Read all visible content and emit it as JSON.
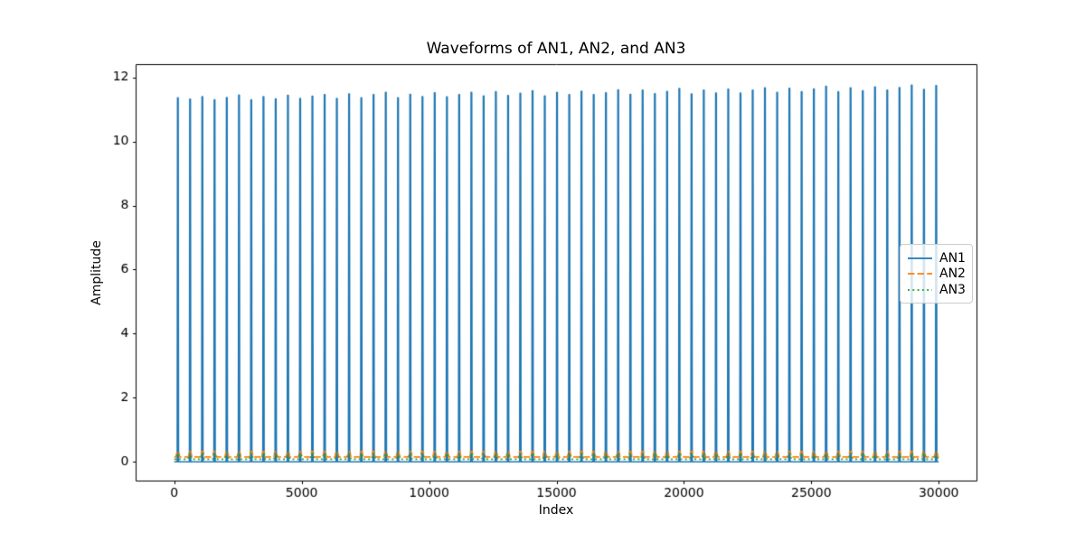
{
  "chart_data": {
    "type": "line",
    "title": "Waveforms of AN1, AN2, and AN3",
    "xlabel": "Index",
    "ylabel": "Amplitude",
    "xlim": [
      -1500,
      31500
    ],
    "ylim": [
      -0.6,
      12.4
    ],
    "xticks": [
      0,
      5000,
      10000,
      15000,
      20000,
      25000,
      30000
    ],
    "yticks": [
      0,
      2,
      4,
      6,
      8,
      10,
      12
    ],
    "grid": false,
    "legend_position": "center right",
    "series": [
      {
        "name": "AN1",
        "color": "#1f77b4",
        "style": "solid",
        "description": "periodic narrow tall pulses rising from a baseline of 0 to about 11.3-11.8, period about 480 samples, heights drifting slightly upward left to right",
        "baseline": 0,
        "spike_half_width": 25,
        "spike_positions": [
          140,
          620,
          1100,
          1580,
          2060,
          2540,
          3020,
          3500,
          3980,
          4460,
          4940,
          5420,
          5900,
          6380,
          6860,
          7340,
          7820,
          8300,
          8780,
          9260,
          9740,
          10220,
          10700,
          11180,
          11660,
          12140,
          12620,
          13100,
          13580,
          14060,
          14540,
          15020,
          15500,
          15980,
          16460,
          16940,
          17420,
          17900,
          18380,
          18860,
          19340,
          19820,
          20300,
          20780,
          21260,
          21740,
          22220,
          22700,
          23180,
          23660,
          24140,
          24620,
          25100,
          25580,
          26060,
          26540,
          27020,
          27500,
          27980,
          28460,
          28940,
          29420,
          29900
        ],
        "spike_heights": [
          11.36,
          11.32,
          11.4,
          11.3,
          11.37,
          11.45,
          11.3,
          11.4,
          11.33,
          11.44,
          11.34,
          11.41,
          11.46,
          11.34,
          11.48,
          11.36,
          11.46,
          11.53,
          11.36,
          11.47,
          11.4,
          11.52,
          11.39,
          11.46,
          11.53,
          11.42,
          11.55,
          11.43,
          11.5,
          11.58,
          11.42,
          11.53,
          11.46,
          11.57,
          11.46,
          11.52,
          11.61,
          11.47,
          11.6,
          11.49,
          11.56,
          11.65,
          11.48,
          11.6,
          11.51,
          11.63,
          11.51,
          11.6,
          11.67,
          11.53,
          11.66,
          11.55,
          11.64,
          11.72,
          11.55,
          11.67,
          11.58,
          11.7,
          11.6,
          11.68,
          11.76,
          11.62,
          11.74
        ],
        "spike_bump_height": null
      },
      {
        "name": "AN2",
        "color": "#ff7f0e",
        "style": "dashed",
        "description": "nearly flat dashed line just above 0 with tiny bumps at each AN1 pulse position",
        "baseline": 0.15,
        "spike_bump_height": 0.32
      },
      {
        "name": "AN3",
        "color": "#2ca02c",
        "style": "dotted",
        "description": "nearly flat dotted line just above 0 with tiny bumps at each AN1 pulse position",
        "baseline": 0.08,
        "spike_bump_height": 0.26
      }
    ]
  }
}
